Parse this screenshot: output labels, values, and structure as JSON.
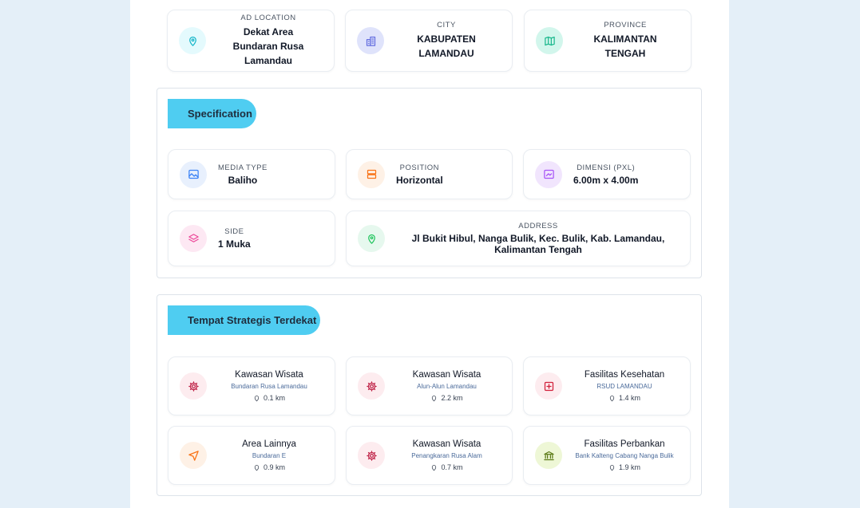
{
  "location_cards": [
    {
      "label": "AD LOCATION",
      "value": "Dekat Area Bundaran Rusa Lamandau"
    },
    {
      "label": "CITY",
      "value": "KABUPATEN LAMANDAU"
    },
    {
      "label": "PROVINCE",
      "value": "KALIMANTAN TENGAH"
    }
  ],
  "specification": {
    "title": "Specification",
    "items": [
      {
        "label": "MEDIA TYPE",
        "value": "Baliho"
      },
      {
        "label": "POSITION",
        "value": "Horizontal"
      },
      {
        "label": "DIMENSI (PXL)",
        "value": "6.00m x 4.00m"
      },
      {
        "label": "SIDE",
        "value": "1 Muka"
      },
      {
        "label": "ADDRESS",
        "value": "Jl Bukit Hibul, Nanga Bulik, Kec. Bulik, Kab. Lamandau, Kalimantan Tengah"
      }
    ]
  },
  "nearby": {
    "title": "Tempat Strategis Terdekat",
    "items": [
      {
        "category": "Kawasan Wisata",
        "name": "Bundaran Rusa Lamandau",
        "distance": "0.1 km"
      },
      {
        "category": "Kawasan Wisata",
        "name": "Alun-Alun Lamandau",
        "distance": "2.2 km"
      },
      {
        "category": "Fasilitas Kesehatan",
        "name": "RSUD LAMANDAU",
        "distance": "1.4 km"
      },
      {
        "category": "Area Lainnya",
        "name": "Bundaran E",
        "distance": "0.9 km"
      },
      {
        "category": "Kawasan Wisata",
        "name": "Penangkaran Rusa Alam",
        "distance": "0.7 km"
      },
      {
        "category": "Fasilitas Perbankan",
        "name": "Bank Kalteng Cabang Nanga Bulik",
        "distance": "1.9 km"
      }
    ]
  }
}
